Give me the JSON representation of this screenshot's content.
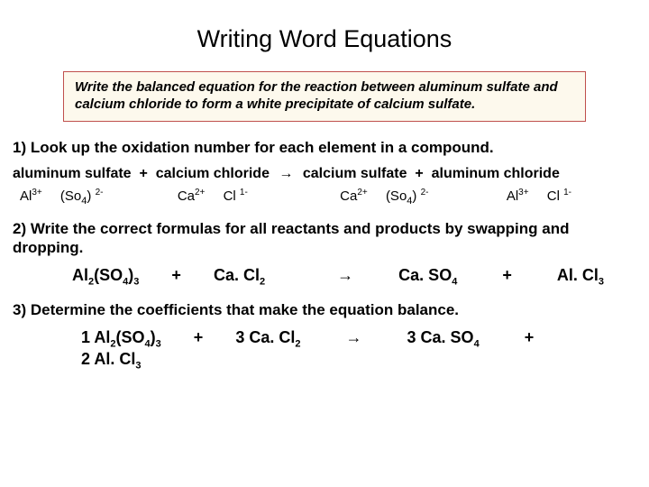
{
  "title": "Writing Word Equations",
  "box_text": "Write the balanced equation for the reaction between aluminum sulfate and calcium chloride to form a white precipitate of calcium sulfate.",
  "step1": "1) Look up the oxidation number for each element in a compound.",
  "word_eq": {
    "r1": "aluminum sulfate",
    "plus1": "+",
    "r2": "calcium chloride",
    "arrow": "→",
    "p1": "calcium sulfate",
    "plus2": "+",
    "p2": "aluminum chloride"
  },
  "ions": {
    "al": "Al",
    "al_sup": "3+",
    "so4": "(So",
    "so4_sub": "4",
    "so4_close": ")",
    "so4_sup": "2-",
    "ca": "Ca",
    "ca_sup": "2+",
    "cl": "Cl",
    "cl_sup": "1-"
  },
  "step2": "2)  Write the correct formulas for all reactants and products by swapping and dropping.",
  "formula": {
    "f1a": "Al",
    "f1b": "2",
    "f1c": "(SO",
    "f1d": "4",
    "f1e": ")",
    "f1f": "3",
    "plus1": "+",
    "f2a": "Ca. Cl",
    "f2b": "2",
    "arrow": "→",
    "f3a": "Ca. SO",
    "f3b": "4",
    "plus2": "+",
    "f4a": "Al. Cl",
    "f4b": "3"
  },
  "step3": "3)  Determine the coefficients that make the equation balance.",
  "balanced": {
    "c1": "1 Al",
    "c1b": "2",
    "c1c": "(SO",
    "c1d": "4",
    "c1e": ")",
    "c1f": "3",
    "plus1": "+",
    "c2": "3 Ca. Cl",
    "c2b": "2",
    "arrow": "→",
    "c3": "3 Ca. SO",
    "c3b": "4",
    "plus2": "+",
    "c4": "2 Al. Cl",
    "c4b": "3"
  },
  "colors": {
    "box_border": "#c0504d",
    "box_bg": "#fdf9ed",
    "text": "#000000",
    "bg": "#ffffff"
  }
}
